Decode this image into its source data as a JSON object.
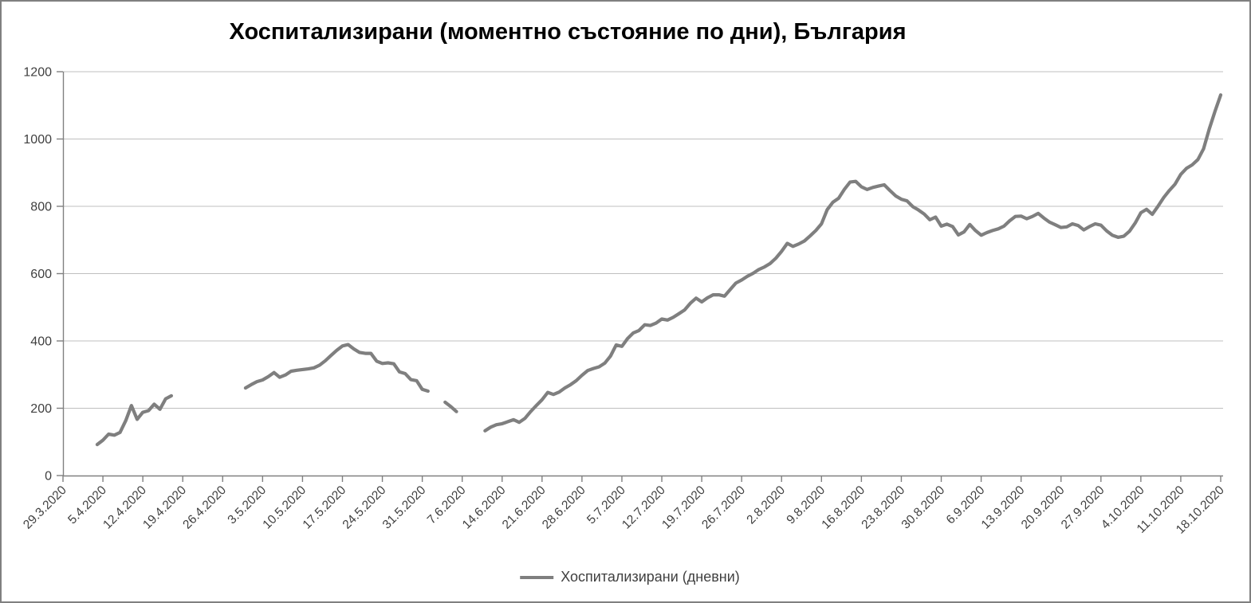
{
  "title": "Хоспитализирани (моментно състояние по дни), България",
  "legend": {
    "label": "Хоспитализирани (дневни)"
  },
  "colors": {
    "series": "#7f7f7f",
    "gridline": "#bfbfbf",
    "axis": "#808080",
    "tick_label": "#404040",
    "title": "#000000",
    "page_border": "#808080",
    "background": "#ffffff"
  },
  "chart_data": {
    "type": "line",
    "title": "Хоспитализирани (моментно състояние по дни), България",
    "series_name": "Хоспитализирани (дневни)",
    "legend_position": "bottom",
    "grid": "horizontal",
    "x_axis": {
      "start_date": "29.3.2020",
      "end_date": "18.10.2020",
      "tick_interval_days": 7,
      "total_days": 203,
      "tick_labels": [
        "29.3.2020",
        "5.4.2020",
        "12.4.2020",
        "19.4.2020",
        "26.4.2020",
        "3.5.2020",
        "10.5.2020",
        "17.5.2020",
        "24.5.2020",
        "31.5.2020",
        "7.6.2020",
        "14.6.2020",
        "21.6.2020",
        "28.6.2020",
        "5.7.2020",
        "12.7.2020",
        "19.7.2020",
        "26.7.2020",
        "2.8.2020",
        "9.8.2020",
        "16.8.2020",
        "23.8.2020",
        "30.8.2020",
        "6.9.2020",
        "13.9.2020",
        "20.9.2020",
        "27.9.2020",
        "4.10.2020",
        "11.10.2020",
        "18.10.2020"
      ]
    },
    "y_axis": {
      "min": 0,
      "max": 1200,
      "tick_step": 200,
      "tick_labels": [
        "0",
        "200",
        "400",
        "600",
        "800",
        "1000",
        "1200"
      ]
    },
    "segments": [
      {
        "start_date": "4.4.2020",
        "start_day_offset": 6,
        "values": [
          92,
          105,
          123,
          120,
          128,
          163,
          208,
          167,
          188,
          193,
          212,
          197,
          228,
          237
        ]
      },
      {
        "start_date": "30.4.2020",
        "start_day_offset": 32,
        "values": [
          260,
          270,
          279,
          284,
          294,
          306,
          292,
          299,
          310,
          313,
          315,
          317,
          320,
          328,
          341,
          357,
          372,
          385,
          389,
          376,
          366,
          363,
          363,
          340,
          333,
          335,
          332,
          308,
          303,
          285,
          282,
          256,
          251
        ]
      },
      {
        "start_date": "4.6.2020",
        "start_day_offset": 67,
        "values": [
          218,
          205,
          190
        ]
      },
      {
        "start_date": "11.6.2020",
        "start_day_offset": 74,
        "values": [
          133,
          144,
          151,
          154,
          160,
          166,
          158,
          170,
          190,
          208,
          225,
          247,
          241,
          248,
          260,
          270,
          282,
          298,
          312,
          318,
          323,
          334,
          355,
          388,
          384,
          407,
          424,
          431,
          448,
          446,
          453,
          465,
          462,
          470,
          481,
          492,
          512,
          527,
          516,
          528,
          537,
          537,
          533,
          553,
          572,
          581,
          592,
          601,
          612,
          620,
          630,
          646,
          666,
          690,
          681,
          688,
          697,
          712,
          728,
          748,
          790,
          812,
          824,
          850,
          872,
          874,
          858,
          850,
          856,
          860,
          864,
          847,
          831,
          821,
          816,
          799,
          789,
          777,
          760,
          768,
          741,
          747,
          740,
          715,
          724,
          746,
          728,
          714,
          722,
          728,
          733,
          741,
          757,
          770,
          771,
          763,
          770,
          779,
          765,
          753,
          745,
          737,
          739,
          748,
          743,
          730,
          740,
          748,
          744,
          727,
          714,
          708,
          711,
          726,
          750,
          781,
          791,
          776,
          800,
          826,
          847,
          866,
          895,
          913,
          923,
          939,
          971,
          1030,
          1082,
          1131
        ]
      }
    ]
  }
}
